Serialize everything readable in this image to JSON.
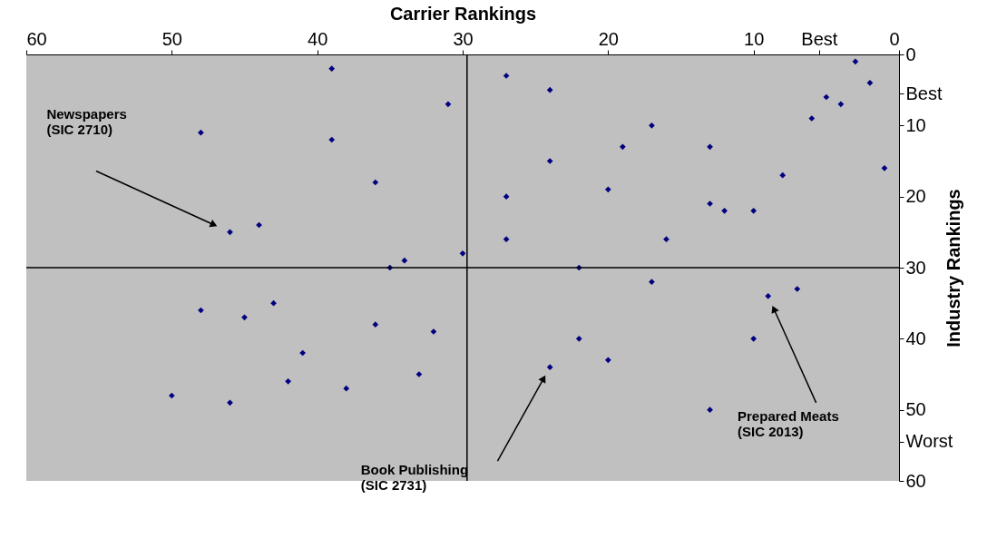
{
  "chart_data": {
    "type": "scatter",
    "xlabel": "Carrier Rankings",
    "ylabel": "Industry Rankings",
    "x": [
      39,
      27,
      24,
      31,
      48,
      39,
      17,
      19,
      13,
      3,
      2,
      5,
      4,
      6,
      1,
      8,
      24,
      36,
      27,
      20,
      13,
      12,
      10,
      46,
      44,
      27,
      16,
      30,
      34,
      35,
      22,
      17,
      7,
      9,
      48,
      43,
      45,
      36,
      32,
      22,
      10,
      41,
      20,
      24,
      33,
      42,
      38,
      50,
      46,
      13
    ],
    "series": [
      {
        "color": "#000080",
        "values": [
          2,
          3,
          5,
          7,
          11,
          12,
          10,
          13,
          13,
          1,
          4,
          6,
          7,
          9,
          16,
          17,
          15,
          18,
          20,
          19,
          21,
          22,
          22,
          25,
          24,
          26,
          26,
          28,
          29,
          30,
          30,
          32,
          33,
          34,
          36,
          35,
          37,
          38,
          39,
          40,
          40,
          42,
          43,
          44,
          45,
          46,
          47,
          48,
          49,
          50
        ]
      }
    ],
    "xlim": [
      60,
      0
    ],
    "ylim": [
      60,
      0
    ],
    "xticks": [
      60,
      50,
      40,
      30,
      20,
      10,
      0,
      {
        "value": 5.5,
        "label": "Best"
      }
    ],
    "yticks": [
      0,
      10,
      20,
      30,
      40,
      50,
      60,
      {
        "value": 5.5,
        "label": "Best"
      },
      {
        "value": 54.5,
        "label": "Worst"
      }
    ],
    "ref_lines": [
      {
        "axis": "x",
        "value": 29.7,
        "color": "#000000"
      },
      {
        "axis": "y",
        "value": 30,
        "color": "#000000"
      }
    ],
    "annotations": [
      "Newspapers\n(SIC 2710)",
      "Book Publishing\n(SIC 2731)",
      "Prepared Meats\n(SIC 2013)"
    ],
    "marker": "diamond",
    "grid": false,
    "legend": false
  }
}
